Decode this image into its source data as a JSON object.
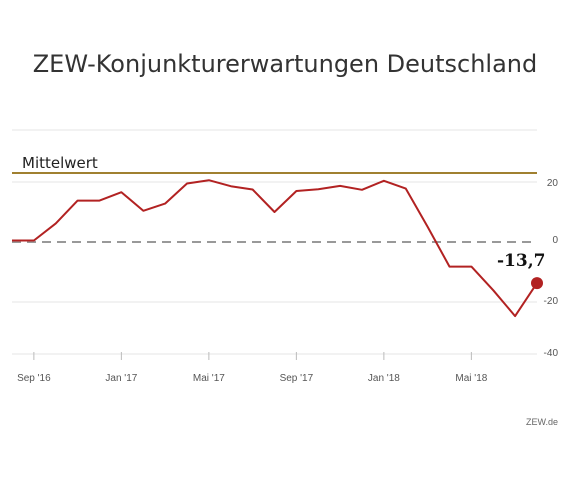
{
  "chart_data": {
    "type": "line",
    "title": "ZEW-Konjunkturerwartungen Deutschland",
    "xlabel": "",
    "ylabel": "",
    "ylim": [
      -40,
      33
    ],
    "x_tick_labels": [
      "Sep '16",
      "Jan '17",
      "Mai '17",
      "Sep '17",
      "Jan '18",
      "Mai '18"
    ],
    "y_ticks": [
      20,
      0,
      -20,
      -40
    ],
    "categories": [
      "2016-08",
      "2016-09",
      "2016-10",
      "2016-11",
      "2016-12",
      "2017-01",
      "2017-02",
      "2017-03",
      "2017-04",
      "2017-05",
      "2017-06",
      "2017-07",
      "2017-08",
      "2017-09",
      "2017-10",
      "2017-11",
      "2017-12",
      "2018-01",
      "2018-02",
      "2018-03",
      "2018-04",
      "2018-05",
      "2018-06",
      "2018-07",
      "2018-08"
    ],
    "series": [
      {
        "values": [
          0.5,
          0.5,
          6.2,
          13.8,
          13.8,
          16.6,
          10.4,
          12.8,
          19.5,
          20.6,
          18.6,
          17.5,
          10.0,
          17.0,
          17.6,
          18.7,
          17.4,
          20.4,
          17.8,
          5.1,
          -8.2,
          -8.2,
          -16.1,
          -24.7,
          -13.7
        ]
      }
    ],
    "reference_line": {
      "label": "Mittelwert",
      "value": 23.0
    },
    "zero_line": 0,
    "last_value_label": "-13,7",
    "colors": {
      "line": "#b22222",
      "mean": "#a08030",
      "zero": "#999999",
      "grid": "#e6e6e6"
    },
    "grid": true,
    "legend": "none"
  },
  "footer": {
    "source": "ZEW.de"
  }
}
